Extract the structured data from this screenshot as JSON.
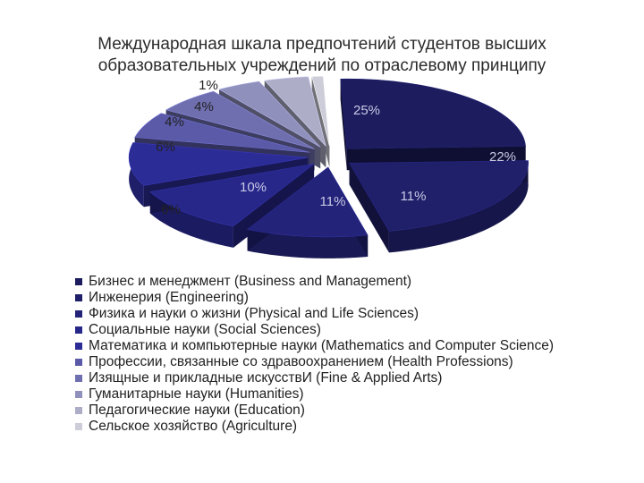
{
  "title": {
    "line1": "Международная шкала предпочтений студентов высших",
    "line2": "образовательных учреждений по отраслевому принципу"
  },
  "chart_data": {
    "type": "pie",
    "style": "3d-exploded",
    "categories": [
      "Бизнес и менеджмент (Business and Management)",
      "Инженерия (Engineering)",
      "Физика и науки о жизни (Physical and Life Sciences)",
      "Социальные науки (Social Sciences)",
      "Математика и компьютерные науки (Mathematics and Computer Science)",
      "Профессии, связанные со здравоохранением (Health Professions)",
      "Изящные и прикладные искусствИ (Fine & Applied Arts)",
      "Гуманитарные науки (Humanities)",
      "Педагогические науки (Education)",
      "Сельское хозяйство (Agriculture)"
    ],
    "values": [
      25,
      22,
      11,
      11,
      10,
      6,
      6,
      4,
      4,
      1
    ],
    "value_labels": [
      "25%",
      "22%",
      "11%",
      "11%",
      "10%",
      "6%",
      "6%",
      "4%",
      "4%",
      "1%"
    ],
    "colors": [
      "#1c1c5e",
      "#1f1f6a",
      "#23237a",
      "#27278a",
      "#2c2c96",
      "#5a5aa8",
      "#6f6fb0",
      "#9090bc",
      "#adadc8",
      "#cdcdda"
    ],
    "legend_position": "bottom"
  }
}
